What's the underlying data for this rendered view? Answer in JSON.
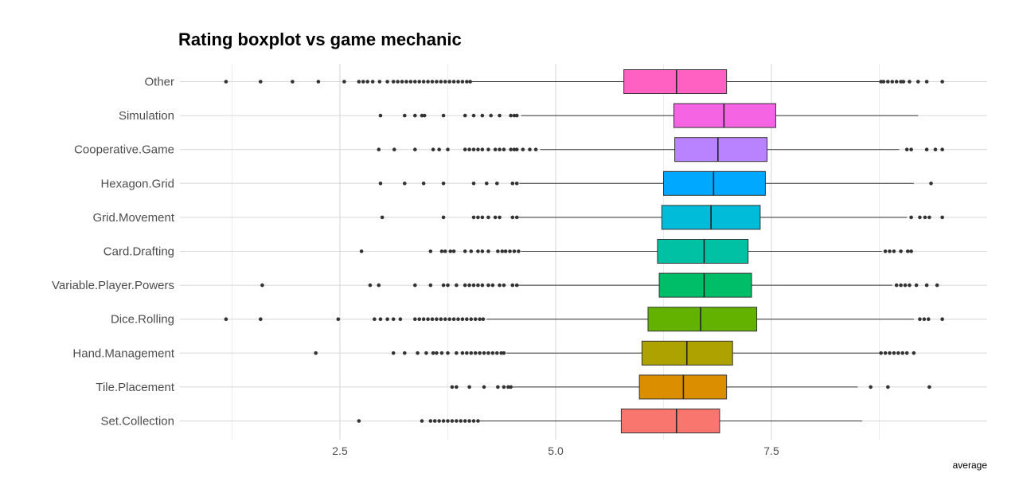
{
  "chart_data": {
    "type": "boxplot",
    "title": "Rating boxplot vs game mechanic",
    "xlabel": "average",
    "ylabel": "",
    "xlim": [
      1.0,
      10.0
    ],
    "xticks": [
      2.5,
      5.0,
      7.5
    ],
    "xtick_labels": [
      "2.5",
      "5.0",
      "7.5"
    ],
    "grid": true,
    "legend": "none",
    "categories": [
      "Other",
      "Simulation",
      "Cooperative.Game",
      "Hexagon.Grid",
      "Grid.Movement",
      "Card.Drafting",
      "Variable.Player.Powers",
      "Dice.Rolling",
      "Hand.Management",
      "Tile.Placement",
      "Set.Collection"
    ],
    "series": [
      {
        "category": "Other",
        "color": "#FF61C3",
        "min": 4.03,
        "q1": 5.79,
        "median": 6.4,
        "q3": 6.98,
        "max": 8.75,
        "outliers": [
          1.18,
          1.58,
          1.95,
          2.25,
          2.55,
          2.72,
          2.77,
          2.82,
          2.88,
          2.96,
          3.05,
          3.12,
          3.17,
          3.22,
          3.27,
          3.32,
          3.37,
          3.42,
          3.47,
          3.52,
          3.57,
          3.62,
          3.67,
          3.72,
          3.77,
          3.82,
          3.87,
          3.92,
          3.97,
          4.01,
          8.77,
          8.8,
          8.85,
          8.9,
          8.95,
          9.0,
          9.03,
          9.1,
          9.2,
          9.3,
          9.48
        ]
      },
      {
        "category": "Simulation",
        "color": "#F564E3",
        "min": 4.6,
        "q1": 6.37,
        "median": 6.95,
        "q3": 7.55,
        "max": 9.2,
        "outliers": [
          2.97,
          3.25,
          3.37,
          3.45,
          3.48,
          3.7,
          3.95,
          4.05,
          4.15,
          4.25,
          4.35,
          4.48,
          4.52,
          4.55
        ]
      },
      {
        "category": "Cooperative.Game",
        "color": "#B983FF",
        "min": 4.82,
        "q1": 6.38,
        "median": 6.88,
        "q3": 7.45,
        "max": 8.98,
        "outliers": [
          2.95,
          3.13,
          3.37,
          3.58,
          3.65,
          3.75,
          3.95,
          4.0,
          4.05,
          4.1,
          4.15,
          4.22,
          4.3,
          4.35,
          4.4,
          4.48,
          4.52,
          4.55,
          4.62,
          4.7,
          4.77,
          9.07,
          9.12,
          9.3,
          9.4,
          9.48
        ]
      },
      {
        "category": "Hexagon.Grid",
        "color": "#00A9FF",
        "min": 4.58,
        "q1": 6.25,
        "median": 6.83,
        "q3": 7.43,
        "max": 9.15,
        "outliers": [
          2.97,
          3.25,
          3.47,
          3.7,
          4.05,
          4.2,
          4.32,
          4.5,
          4.55,
          9.35
        ]
      },
      {
        "category": "Grid.Movement",
        "color": "#00BCD8",
        "min": 4.57,
        "q1": 6.23,
        "median": 6.8,
        "q3": 7.37,
        "max": 9.07,
        "outliers": [
          2.99,
          3.7,
          4.05,
          4.1,
          4.15,
          4.22,
          4.3,
          4.35,
          4.5,
          4.55,
          9.12,
          9.22,
          9.28,
          9.33,
          9.48
        ]
      },
      {
        "category": "Card.Drafting",
        "color": "#00C1A3",
        "min": 4.6,
        "q1": 6.18,
        "median": 6.72,
        "q3": 7.23,
        "max": 8.78,
        "outliers": [
          2.75,
          3.55,
          3.68,
          3.72,
          3.78,
          3.82,
          3.95,
          4.02,
          4.1,
          4.15,
          4.22,
          4.33,
          4.38,
          4.42,
          4.47,
          4.52,
          4.57,
          8.82,
          8.87,
          8.92,
          9.0,
          9.08,
          9.12
        ]
      },
      {
        "category": "Variable.Player.Powers",
        "color": "#00BE67",
        "min": 4.55,
        "q1": 6.2,
        "median": 6.72,
        "q3": 7.27,
        "max": 8.9,
        "outliers": [
          1.6,
          2.85,
          2.95,
          3.37,
          3.55,
          3.7,
          3.75,
          3.85,
          3.95,
          4.0,
          4.05,
          4.1,
          4.15,
          4.22,
          4.27,
          4.35,
          4.4,
          4.5,
          4.55,
          8.95,
          9.0,
          9.05,
          9.1,
          9.18,
          9.3,
          9.42
        ]
      },
      {
        "category": "Dice.Rolling",
        "color": "#64B200",
        "min": 4.2,
        "q1": 6.07,
        "median": 6.68,
        "q3": 7.33,
        "max": 9.15,
        "outliers": [
          1.18,
          1.58,
          2.48,
          2.9,
          2.97,
          3.05,
          3.12,
          3.2,
          3.37,
          3.42,
          3.47,
          3.52,
          3.57,
          3.62,
          3.67,
          3.72,
          3.77,
          3.82,
          3.87,
          3.92,
          3.97,
          4.02,
          4.07,
          4.12,
          4.16,
          9.22,
          9.27,
          9.32,
          9.48
        ]
      },
      {
        "category": "Hand.Management",
        "color": "#AEA200",
        "min": 4.43,
        "q1": 6.0,
        "median": 6.52,
        "q3": 7.05,
        "max": 8.75,
        "outliers": [
          2.22,
          3.12,
          3.25,
          3.4,
          3.5,
          3.58,
          3.62,
          3.68,
          3.75,
          3.85,
          3.92,
          3.97,
          4.02,
          4.07,
          4.12,
          4.17,
          4.22,
          4.27,
          4.32,
          4.37,
          4.4,
          8.77,
          8.82,
          8.87,
          8.92,
          8.97,
          9.02,
          9.07,
          9.15
        ]
      },
      {
        "category": "Tile.Placement",
        "color": "#DB8E00",
        "min": 4.48,
        "q1": 5.97,
        "median": 6.48,
        "q3": 6.98,
        "max": 8.5,
        "outliers": [
          3.8,
          3.85,
          4.0,
          4.17,
          4.33,
          4.4,
          4.45,
          4.48,
          8.65,
          8.85,
          9.33
        ]
      },
      {
        "category": "Set.Collection",
        "color": "#F8766D",
        "min": 4.12,
        "q1": 5.76,
        "median": 6.4,
        "q3": 6.9,
        "max": 8.55,
        "outliers": [
          2.72,
          3.45,
          3.55,
          3.6,
          3.65,
          3.7,
          3.75,
          3.8,
          3.85,
          3.9,
          3.95,
          4.0,
          4.05,
          4.1
        ]
      }
    ]
  }
}
